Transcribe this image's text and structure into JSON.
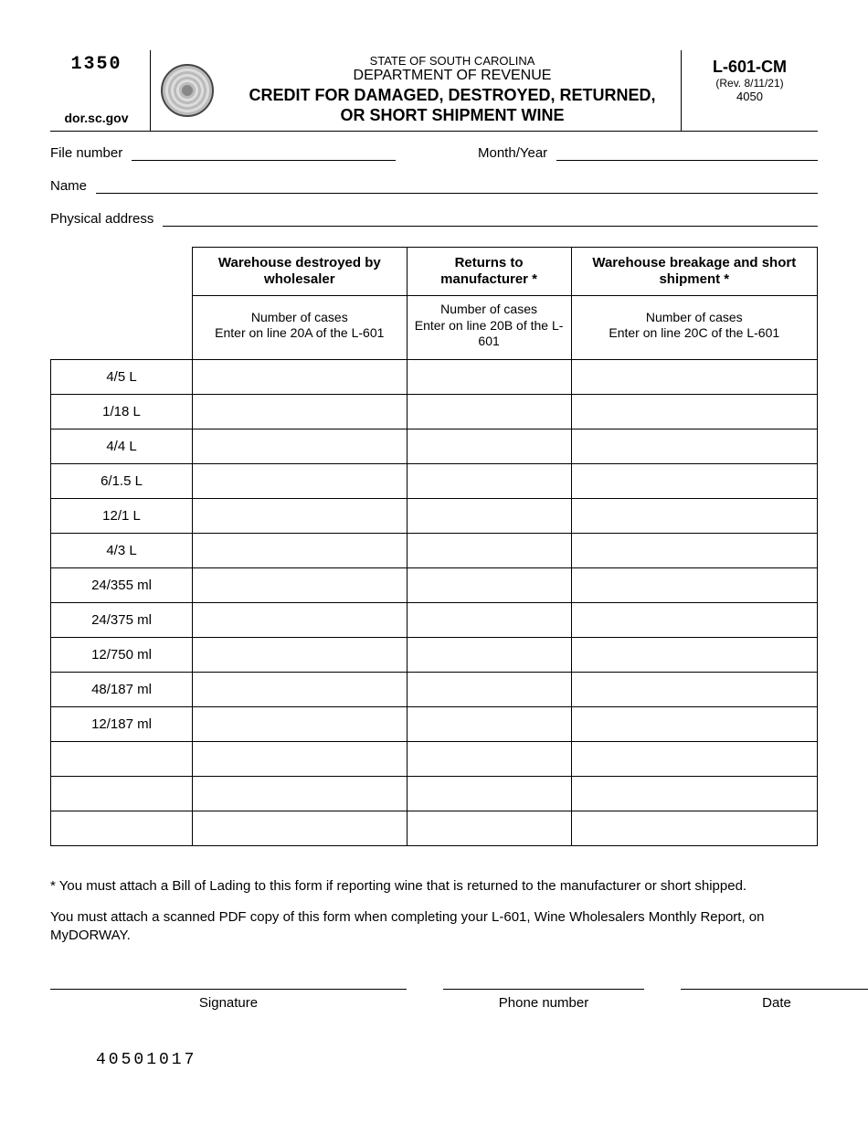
{
  "header": {
    "code": "1350",
    "website": "dor.sc.gov",
    "state_line": "STATE OF SOUTH CAROLINA",
    "dept_line": "DEPARTMENT OF REVENUE",
    "title_line1": "CREDIT FOR DAMAGED, DESTROYED, RETURNED,",
    "title_line2": "OR SHORT SHIPMENT WINE",
    "form_id": "L-601-CM",
    "revision": "(Rev. 8/11/21)",
    "form_num": "4050"
  },
  "fields": {
    "file_number_label": "File number",
    "month_year_label": "Month/Year",
    "name_label": "Name",
    "address_label": "Physical address"
  },
  "table": {
    "columns": [
      {
        "title": "Warehouse destroyed by wholesaler",
        "sub1": "Number of cases",
        "sub2": "Enter on line 20A of the L-601"
      },
      {
        "title": "Returns to manufacturer *",
        "sub1": "Number of cases",
        "sub2": "Enter on line 20B of the L-601"
      },
      {
        "title": "Warehouse breakage and short shipment *",
        "sub1": "Number of cases",
        "sub2": "Enter on line 20C of the L-601"
      }
    ],
    "rows": [
      "4/5 L",
      "1/18 L",
      "4/4 L",
      "6/1.5 L",
      "12/1 L",
      "4/3 L",
      "24/355 ml",
      "24/375 ml",
      "12/750 ml",
      "48/187 ml",
      "12/187 ml",
      "",
      "",
      ""
    ]
  },
  "notes": {
    "n1": "* You must attach a Bill of Lading to this form if reporting wine that is returned to the manufacturer or short shipped.",
    "n2": "You must attach a scanned PDF copy of this form when completing your L-601, Wine Wholesalers Monthly Report, on MyDORWAY."
  },
  "signatures": {
    "sig": "Signature",
    "phone": "Phone number",
    "date": "Date"
  },
  "footer_code": "40501017"
}
